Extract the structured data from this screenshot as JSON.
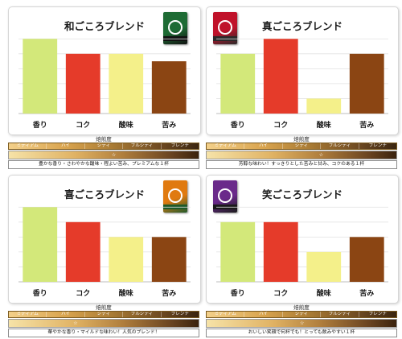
{
  "roast_caption": "焙煎度",
  "roast_levels": [
    "ミディアム",
    "ハイ",
    "シティ",
    "フルシティ",
    "フレンチ"
  ],
  "categories": [
    "香り",
    "コク",
    "酸味",
    "苦み"
  ],
  "bar_colors": [
    "#d3e87a",
    "#e53b2a",
    "#f4f08a",
    "#8b4513"
  ],
  "chart_data": [
    {
      "type": "bar",
      "title": "和ごころブレンド",
      "categories": [
        "香り",
        "コク",
        "酸味",
        "苦み"
      ],
      "values": [
        5,
        4,
        4,
        3.5
      ],
      "ylim": [
        0,
        5.5
      ],
      "grid": true,
      "roast_position": 0.55,
      "package_colors": [
        "#1e6b34",
        "#111111"
      ],
      "description": "豊かな香り・さわやかな酸味・程よい苦み、プレミアムな１杯"
    },
    {
      "type": "bar",
      "title": "真ごころブレンド",
      "categories": [
        "香り",
        "コク",
        "酸味",
        "苦み"
      ],
      "values": [
        4,
        5,
        1,
        4
      ],
      "ylim": [
        0,
        5.5
      ],
      "grid": true,
      "roast_position": 0.6,
      "package_colors": [
        "#c0122a",
        "#2a2a2a"
      ],
      "description": "芳醇な味わい！すっきりとした苦みと甘み、コクのある１杯"
    },
    {
      "type": "bar",
      "title": "喜ごころブレンド",
      "categories": [
        "香り",
        "コク",
        "酸味",
        "苦み"
      ],
      "values": [
        5,
        4,
        3,
        3
      ],
      "ylim": [
        0,
        5.5
      ],
      "grid": true,
      "roast_position": 0.35,
      "package_colors": [
        "#e07a10",
        "#1e5a2a"
      ],
      "description": "華やかな香り・マイルドな味わい！人気のブレンド！"
    },
    {
      "type": "bar",
      "title": "笑ごころブレンド",
      "categories": [
        "香り",
        "コク",
        "酸味",
        "苦み"
      ],
      "values": [
        4,
        4,
        2,
        3
      ],
      "ylim": [
        0,
        5.5
      ],
      "grid": true,
      "roast_position": 0.5,
      "package_colors": [
        "#6a2a8a",
        "#1a1a1a"
      ],
      "description": "おいしい笑顔で何杯でも！とっても飲みやすい１杯"
    }
  ]
}
